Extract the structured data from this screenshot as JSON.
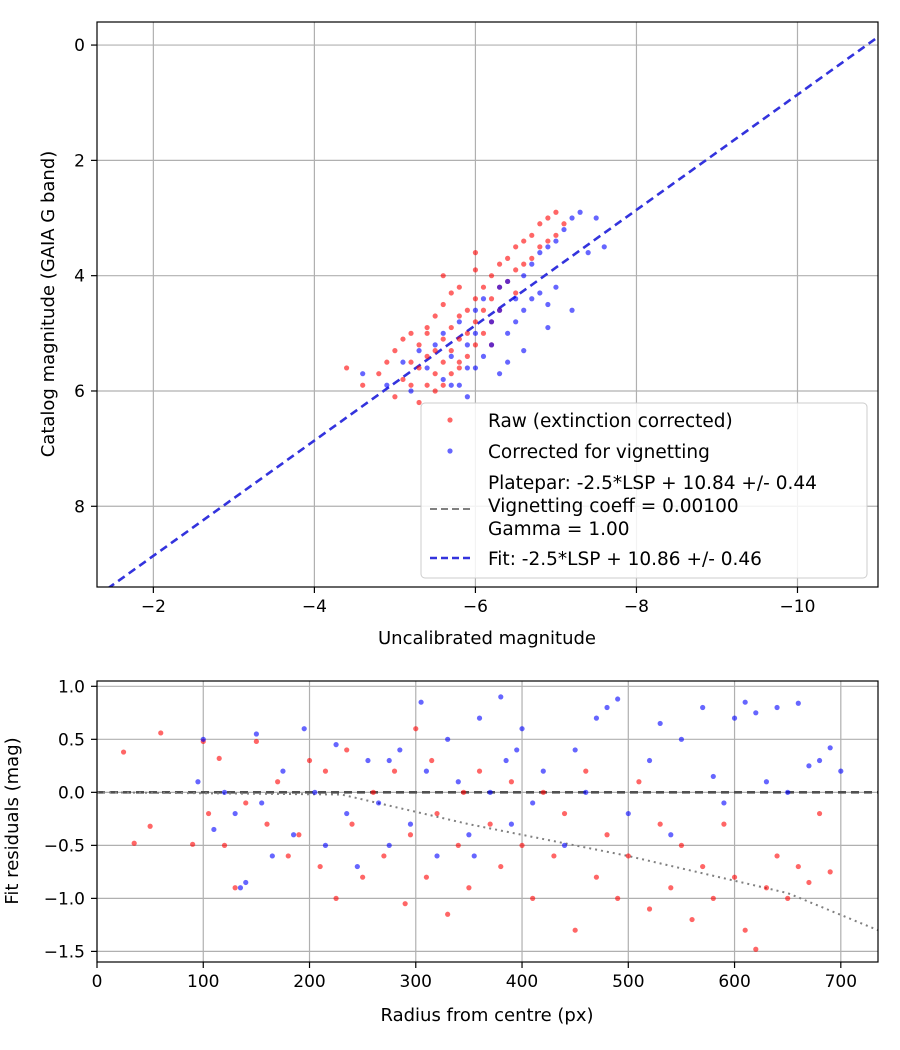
{
  "chart_data": [
    {
      "type": "scatter",
      "title": "",
      "xlabel": "Uncalibrated magnitude",
      "ylabel": "Catalog magnitude (GAIA G band)",
      "xlim": [
        -1.3,
        -11.0
      ],
      "ylim": [
        9.4,
        -0.4
      ],
      "x_inverted": true,
      "y_inverted": true,
      "xticks": [
        -2,
        -4,
        -6,
        -8,
        -10
      ],
      "xtick_labels": [
        "−2",
        "−4",
        "−6",
        "−8",
        "−10"
      ],
      "yticks": [
        0,
        2,
        4,
        6,
        8
      ],
      "ytick_labels": [
        "0",
        "2",
        "4",
        "6",
        "8"
      ],
      "grid": true,
      "legend_position": "lower-right",
      "series": [
        {
          "name": "Raw (extinction corrected)",
          "kind": "scatter",
          "color": "#ff0000",
          "x": [
            -4.4,
            -4.6,
            -4.8,
            -4.9,
            -5.0,
            -5.0,
            -5.1,
            -5.1,
            -5.2,
            -5.2,
            -5.2,
            -5.3,
            -5.3,
            -5.3,
            -5.4,
            -5.4,
            -5.4,
            -5.5,
            -5.5,
            -5.5,
            -5.5,
            -5.6,
            -5.6,
            -5.6,
            -5.6,
            -5.7,
            -5.7,
            -5.7,
            -5.7,
            -5.8,
            -5.8,
            -5.8,
            -5.8,
            -5.9,
            -5.9,
            -5.9,
            -6.0,
            -6.0,
            -6.0,
            -6.0,
            -6.1,
            -6.1,
            -6.1,
            -6.2,
            -6.2,
            -6.2,
            -6.3,
            -6.3,
            -6.3,
            -6.4,
            -6.4,
            -6.5,
            -6.5,
            -6.5,
            -6.6,
            -6.6,
            -6.7,
            -6.7,
            -6.8,
            -6.8,
            -6.9,
            -6.9,
            -7.0,
            -7.0,
            -7.1,
            -5.4,
            -5.6,
            -5.8,
            -6.0,
            -6.2
          ],
          "y": [
            5.6,
            5.9,
            5.7,
            5.5,
            6.1,
            5.3,
            5.8,
            5.1,
            5.5,
            5.9,
            5.0,
            5.6,
            5.2,
            6.2,
            5.4,
            4.9,
            5.9,
            5.3,
            5.7,
            4.7,
            6.0,
            5.1,
            5.5,
            4.5,
            5.9,
            4.9,
            5.3,
            4.3,
            5.7,
            4.7,
            5.1,
            5.5,
            4.2,
            4.6,
            5.0,
            5.4,
            4.4,
            4.8,
            5.2,
            3.9,
            4.2,
            4.6,
            5.0,
            4.0,
            4.4,
            4.8,
            3.8,
            4.2,
            4.6,
            3.7,
            4.1,
            3.5,
            3.9,
            4.3,
            3.4,
            3.8,
            3.3,
            3.7,
            3.1,
            3.5,
            3.0,
            3.4,
            2.9,
            3.3,
            3.1,
            5.0,
            4.0,
            5.6,
            3.6,
            5.2
          ]
        },
        {
          "name": "Corrected for vignetting",
          "kind": "scatter",
          "color": "#0000ff",
          "x": [
            -4.6,
            -4.9,
            -5.1,
            -5.2,
            -5.4,
            -5.5,
            -5.6,
            -5.6,
            -5.7,
            -5.8,
            -5.8,
            -5.9,
            -5.9,
            -6.0,
            -6.0,
            -6.1,
            -6.1,
            -6.2,
            -6.2,
            -6.3,
            -6.3,
            -6.4,
            -6.4,
            -6.5,
            -6.5,
            -6.6,
            -6.6,
            -6.7,
            -6.7,
            -6.8,
            -6.8,
            -6.9,
            -6.9,
            -7.0,
            -7.0,
            -7.1,
            -7.2,
            -7.2,
            -7.3,
            -7.4,
            -7.5,
            -7.6,
            -5.3,
            -5.7,
            -6.0,
            -6.3,
            -6.6,
            -6.9,
            -5.9,
            -6.4
          ],
          "y": [
            5.7,
            5.9,
            5.5,
            6.0,
            5.6,
            5.2,
            5.8,
            5.0,
            5.4,
            5.9,
            4.8,
            5.2,
            5.6,
            4.6,
            5.0,
            5.4,
            4.4,
            4.8,
            5.2,
            4.2,
            4.6,
            5.0,
            4.1,
            4.4,
            4.8,
            4.0,
            4.6,
            3.8,
            4.4,
            3.6,
            4.3,
            3.5,
            4.5,
            3.4,
            4.2,
            3.2,
            3.0,
            4.6,
            2.9,
            3.6,
            3.0,
            3.5,
            5.3,
            5.9,
            5.6,
            5.7,
            5.3,
            4.9,
            6.1,
            5.5
          ]
        },
        {
          "name": "Platepar: -2.5*LSP + 10.84 +/- 0.44\nVignetting coeff = 0.00100\nGamma = 1.00",
          "kind": "line",
          "color": "#808080",
          "style": "dashed",
          "slope": 1.0,
          "intercept": 10.84
        },
        {
          "name": "Fit: -2.5*LSP + 10.86 +/- 0.46",
          "kind": "line",
          "color": "#3333dd",
          "style": "dashed",
          "slope": 1.0,
          "intercept": 10.86,
          "x_range": [
            -1.3,
            -11.0
          ]
        }
      ]
    },
    {
      "type": "scatter",
      "title": "",
      "xlabel": "Radius from centre (px)",
      "ylabel": "Fit residuals (mag)",
      "xlim": [
        0,
        735
      ],
      "ylim": [
        -1.6,
        1.05
      ],
      "xticks": [
        0,
        100,
        200,
        300,
        400,
        500,
        600,
        700
      ],
      "xtick_labels": [
        "0",
        "100",
        "200",
        "300",
        "400",
        "500",
        "600",
        "700"
      ],
      "yticks": [
        1.0,
        0.5,
        0.0,
        -0.5,
        -1.0,
        -1.5
      ],
      "ytick_labels": [
        "1.0",
        "0.5",
        "0.0",
        "−0.5",
        "−1.0",
        "−1.5"
      ],
      "grid": true,
      "series": [
        {
          "name": "Raw (extinction corrected)",
          "kind": "scatter",
          "color": "#ff0000",
          "x": [
            25,
            35,
            50,
            60,
            90,
            100,
            105,
            115,
            120,
            130,
            140,
            150,
            160,
            170,
            180,
            190,
            200,
            210,
            215,
            225,
            235,
            240,
            250,
            260,
            270,
            280,
            290,
            295,
            300,
            310,
            315,
            320,
            330,
            340,
            345,
            350,
            360,
            370,
            380,
            390,
            400,
            410,
            420,
            430,
            440,
            450,
            460,
            470,
            480,
            490,
            500,
            510,
            520,
            530,
            540,
            550,
            560,
            570,
            580,
            590,
            600,
            610,
            620,
            630,
            640,
            650,
            660,
            670,
            680,
            690
          ],
          "y": [
            0.38,
            -0.48,
            -0.32,
            0.56,
            -0.49,
            0.48,
            -0.2,
            0.32,
            -0.5,
            -0.9,
            -0.1,
            0.48,
            -0.3,
            0.1,
            -0.6,
            -0.4,
            0.3,
            -0.7,
            0.2,
            -1.0,
            0.4,
            -0.3,
            -0.8,
            0.0,
            -0.6,
            0.2,
            -1.05,
            -0.4,
            0.6,
            -0.8,
            0.3,
            -0.2,
            -1.15,
            -0.5,
            0.0,
            -0.9,
            0.2,
            -0.3,
            -0.7,
            0.1,
            -0.5,
            -1.0,
            0.0,
            -0.6,
            -0.2,
            -1.3,
            0.2,
            -0.8,
            -0.4,
            -1.0,
            -0.6,
            0.1,
            -1.1,
            -0.3,
            -0.9,
            -0.5,
            -1.2,
            -0.7,
            -1.0,
            -0.3,
            -0.8,
            -1.3,
            -1.48,
            -0.9,
            -0.6,
            -1.0,
            -0.7,
            -0.85,
            -0.2,
            -0.75
          ]
        },
        {
          "name": "Corrected for vignetting",
          "kind": "scatter",
          "color": "#0000ff",
          "x": [
            95,
            100,
            110,
            120,
            130,
            140,
            150,
            155,
            165,
            175,
            185,
            195,
            205,
            215,
            225,
            235,
            245,
            255,
            265,
            275,
            285,
            295,
            305,
            310,
            320,
            330,
            340,
            350,
            360,
            370,
            380,
            385,
            390,
            400,
            410,
            420,
            440,
            450,
            460,
            470,
            480,
            490,
            500,
            520,
            530,
            540,
            550,
            570,
            580,
            590,
            600,
            610,
            620,
            630,
            640,
            650,
            660,
            670,
            680,
            690,
            700,
            135,
            275,
            355,
            395
          ],
          "y": [
            0.1,
            0.5,
            -0.35,
            0.0,
            -0.2,
            -0.85,
            0.55,
            -0.1,
            -0.6,
            0.2,
            -0.4,
            0.6,
            0.0,
            -0.5,
            0.45,
            -0.2,
            -0.7,
            0.3,
            -0.1,
            -0.5,
            0.4,
            -0.3,
            0.85,
            0.2,
            -0.6,
            0.5,
            0.1,
            -0.4,
            0.7,
            0.0,
            0.9,
            0.3,
            -0.3,
            0.6,
            -0.1,
            0.2,
            -0.5,
            0.4,
            0.0,
            0.7,
            0.8,
            0.88,
            -0.2,
            0.3,
            0.65,
            -0.4,
            0.5,
            0.8,
            0.15,
            -0.1,
            0.7,
            0.85,
            0.75,
            0.1,
            0.8,
            0.0,
            0.84,
            0.25,
            0.3,
            0.42,
            0.2,
            -0.9,
            0.3,
            -0.6,
            0.4
          ]
        },
        {
          "name": "",
          "kind": "line",
          "color": "#505050",
          "style": "dashed",
          "points": [
            [
              0,
              0.0
            ],
            [
              735,
              0.0
            ]
          ]
        },
        {
          "name": "",
          "kind": "line",
          "color": "#808080",
          "style": "dotted",
          "points": [
            [
              0,
              0.0
            ],
            [
              230,
              -0.02
            ],
            [
              350,
              -0.3
            ],
            [
              500,
              -0.6
            ],
            [
              650,
              -0.95
            ],
            [
              735,
              -1.3
            ]
          ]
        }
      ]
    }
  ]
}
